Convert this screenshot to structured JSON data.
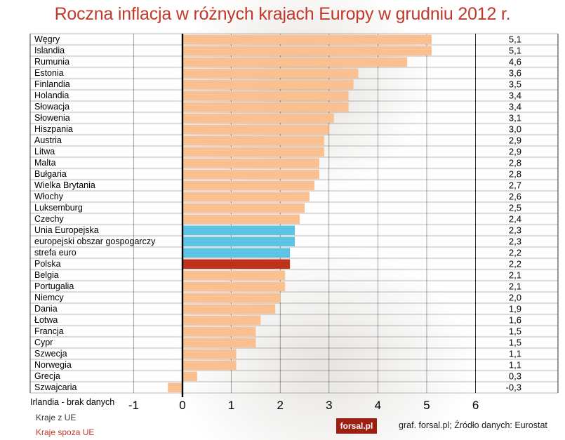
{
  "title": "Roczna inflacja w różnych krajach Europy w grudniu 2012 r.",
  "note_missing": "Irlandia - brak danych",
  "legend": {
    "eu": "Kraje z UE",
    "non_eu": "Kraje spoza UE"
  },
  "logo": "forsal.pl",
  "source": "graf. forsal.pl; Źródło danych: Eurostat",
  "colors": {
    "eu_bar": "#fbc08f",
    "aggregate_bar": "#5bc3e3",
    "poland_bar": "#c0311a",
    "non_eu_label": "#c0392b",
    "title": "#c0392b"
  },
  "chart_data": {
    "type": "bar",
    "orientation": "horizontal",
    "title": "Roczna inflacja w różnych krajach Europy w grudniu 2012 r.",
    "xlim": [
      -1,
      6
    ],
    "xticks": [
      "-1",
      "0",
      "1",
      "2",
      "3",
      "4",
      "5",
      "6"
    ],
    "grid": true,
    "categories": [
      "Węgry",
      "Islandia",
      "Rumunia",
      "Estonia",
      "Finlandia",
      "Holandia",
      "Słowacja",
      "Słowenia",
      "Hiszpania",
      "Austria",
      "Litwa",
      "Malta",
      "Bułgaria",
      "Wielka Brytania",
      "Włochy",
      "Luksemburg",
      "Czechy",
      "Unia Europejska",
      "europejski obszar gospogarczy",
      "strefa euro",
      "Polska",
      "Belgia",
      "Portugalia",
      "Niemcy",
      "Dania",
      "Łotwa",
      "Francja",
      "Cypr",
      "Szwecja",
      "Norwegia",
      "Grecja",
      "Szwajcaria"
    ],
    "values": [
      5.1,
      5.1,
      4.6,
      3.6,
      3.5,
      3.4,
      3.4,
      3.1,
      3.0,
      2.9,
      2.9,
      2.8,
      2.8,
      2.7,
      2.6,
      2.5,
      2.4,
      2.3,
      2.3,
      2.2,
      2.2,
      2.1,
      2.1,
      2.0,
      1.9,
      1.6,
      1.5,
      1.5,
      1.1,
      1.1,
      0.3,
      -0.3
    ],
    "value_labels": [
      "5,1",
      "5,1",
      "4,6",
      "3,6",
      "3,5",
      "3,4",
      "3,4",
      "3,1",
      "3,0",
      "2,9",
      "2,9",
      "2,8",
      "2,8",
      "2,7",
      "2,6",
      "2,5",
      "2,4",
      "2,3",
      "2,3",
      "2,2",
      "2,2",
      "2,1",
      "2,1",
      "2,0",
      "1,9",
      "1,6",
      "1,5",
      "1,5",
      "1,1",
      "1,1",
      "0,3",
      "-0,3"
    ],
    "groups": [
      "eu",
      "non_eu",
      "eu",
      "eu",
      "eu",
      "eu",
      "eu",
      "eu",
      "eu",
      "eu",
      "eu",
      "eu",
      "eu",
      "eu",
      "eu",
      "eu",
      "eu",
      "aggregate",
      "aggregate",
      "aggregate",
      "poland",
      "eu",
      "eu",
      "eu",
      "eu",
      "eu",
      "eu",
      "eu",
      "eu",
      "non_eu",
      "eu",
      "non_eu"
    ]
  }
}
